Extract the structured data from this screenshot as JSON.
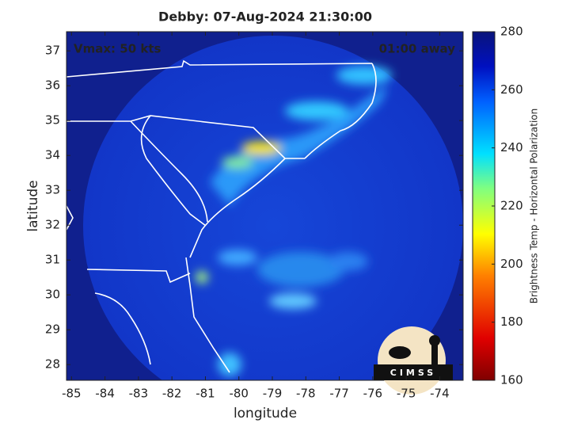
{
  "chart_data": {
    "type": "map",
    "title": "Debby: 07-Aug-2024 21:30:00",
    "annotations": {
      "left": "Vmax: 50 kts",
      "right": "01:00 away"
    },
    "xlabel": "longitude",
    "ylabel": "latitude",
    "xlim": [
      -85.15,
      -73.3
    ],
    "xticks": [
      -85,
      -84,
      -83,
      -82,
      -81,
      -80,
      -79,
      -78,
      -77,
      -76,
      -75,
      -74
    ],
    "ylim": [
      27.55,
      37.55
    ],
    "yticks": [
      28,
      29,
      30,
      31,
      32,
      33,
      34,
      35,
      36,
      37
    ],
    "colorbar": {
      "label": "Brightness Temp - Horizontal Polarization",
      "lim": [
        160,
        280
      ],
      "ticks": [
        160,
        180,
        200,
        220,
        240,
        260,
        280
      ]
    },
    "logo": "CIMSS"
  }
}
